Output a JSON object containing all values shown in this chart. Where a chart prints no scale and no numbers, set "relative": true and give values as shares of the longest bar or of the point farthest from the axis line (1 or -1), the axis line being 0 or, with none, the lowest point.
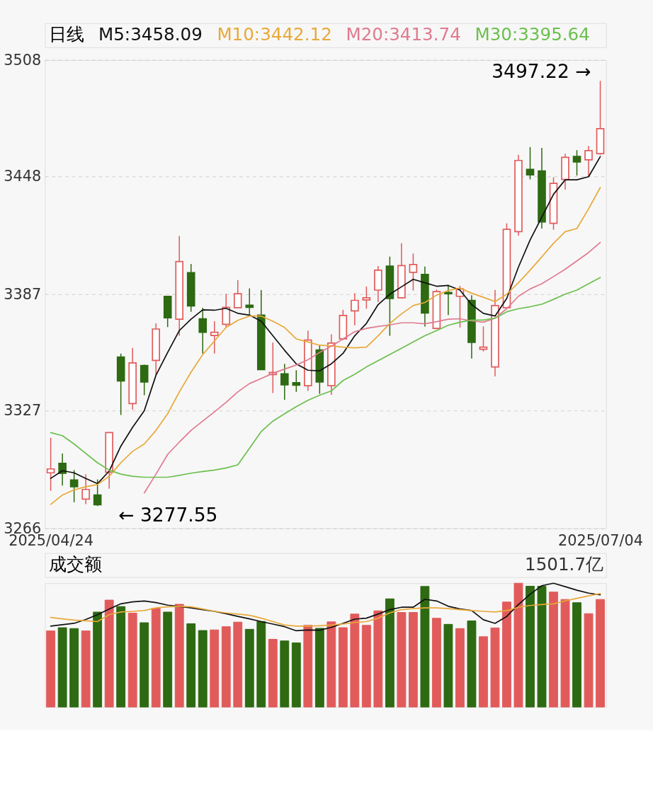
{
  "chart_data": [
    {
      "type": "candlestick",
      "title": "日线",
      "legend": "top left",
      "grid": "y",
      "categories": [
        "2025/04/24",
        null,
        null,
        null,
        null,
        null,
        null,
        null,
        null,
        null,
        null,
        null,
        null,
        null,
        null,
        null,
        null,
        null,
        null,
        null,
        null,
        null,
        null,
        null,
        null,
        null,
        null,
        null,
        null,
        null,
        null,
        null,
        null,
        null,
        null,
        null,
        null,
        null,
        null,
        null,
        null,
        null,
        null,
        null,
        null,
        null,
        null,
        "2025/07/04"
      ],
      "ylim": [
        3266,
        3508
      ],
      "yticks": [
        3266,
        3327,
        3387,
        3448,
        3508
      ],
      "ohlc": [
        [
          3294.7,
          3312.8,
          3285.4,
          3296.7
        ],
        [
          3299.6,
          3304.7,
          3288.1,
          3294.5
        ],
        [
          3291.0,
          3296.1,
          3279.5,
          3287.5
        ],
        [
          3281.1,
          3294.0,
          3278.5,
          3286.1
        ],
        [
          3283.2,
          3291.3,
          3277.55,
          3278.2
        ],
        [
          3295.0,
          3315.6,
          3286.5,
          3315.5
        ],
        [
          3354.5,
          3356.3,
          3324.6,
          3342.2
        ],
        [
          3330.5,
          3359.2,
          3327.3,
          3351.5
        ],
        [
          3350.1,
          3350.6,
          3334.8,
          3341.6
        ],
        [
          3352.8,
          3371.9,
          3345.1,
          3369.0
        ],
        [
          3385.9,
          3385.9,
          3370.0,
          3374.8
        ],
        [
          3374.1,
          3417.1,
          3365.5,
          3403.9
        ],
        [
          3398.1,
          3402.6,
          3377.9,
          3380.9
        ],
        [
          3374.3,
          3380.0,
          3356.3,
          3367.3
        ],
        [
          3365.7,
          3373.0,
          3356.3,
          3367.3
        ],
        [
          3371.4,
          3387.2,
          3369.8,
          3380.2
        ],
        [
          3380.0,
          3394.2,
          3380.0,
          3387.2
        ],
        [
          3381.3,
          3390.0,
          3376.2,
          3380.2
        ],
        [
          3376.2,
          3389.1,
          3348.0,
          3348.0
        ],
        [
          3345.5,
          3362.0,
          3335.9,
          3346.6
        ],
        [
          3345.8,
          3351.0,
          3332.4,
          3340.2
        ],
        [
          3341.3,
          3347.7,
          3336.5,
          3340.0
        ],
        [
          3339.7,
          3368.2,
          3337.0,
          3363.3
        ],
        [
          3358.2,
          3360.7,
          3335.5,
          3341.6
        ],
        [
          3339.7,
          3366.3,
          3335.0,
          3361.7
        ],
        [
          3363.9,
          3378.9,
          3363.3,
          3376.0
        ],
        [
          3378.4,
          3387.5,
          3370.9,
          3383.8
        ],
        [
          3384.0,
          3391.0,
          3379.5,
          3385.1
        ],
        [
          3389.1,
          3401.5,
          3382.9,
          3399.4
        ],
        [
          3401.5,
          3406.4,
          3365.5,
          3384.8
        ],
        [
          3385.1,
          3413.3,
          3384.8,
          3401.8
        ],
        [
          3398.3,
          3408.0,
          3388.9,
          3402.3
        ],
        [
          3397.2,
          3401.3,
          3370.3,
          3377.3
        ],
        [
          3369.3,
          3389.4,
          3368.9,
          3388.3
        ],
        [
          3387.9,
          3391.8,
          3376.2,
          3387.2
        ],
        [
          3385.9,
          3391.3,
          3369.8,
          3389.7
        ],
        [
          3383.8,
          3386.5,
          3353.7,
          3362.1
        ],
        [
          3358.5,
          3370.3,
          3357.4,
          3359.6
        ],
        [
          3349.4,
          3389.2,
          3344.5,
          3381.1
        ],
        [
          3380.0,
          3423.6,
          3379.7,
          3420.5
        ],
        [
          3419.3,
          3459.0,
          3417.3,
          3456.1
        ],
        [
          3451.5,
          3463.0,
          3446.3,
          3448.6
        ],
        [
          3450.7,
          3462.6,
          3420.9,
          3424.3
        ],
        [
          3423.6,
          3447.4,
          3420.3,
          3444.3
        ],
        [
          3446.3,
          3459.6,
          3441.0,
          3457.7
        ],
        [
          3458.2,
          3461.4,
          3448.3,
          3455.3
        ],
        [
          3456.4,
          3463.6,
          3447.7,
          3461.2
        ],
        [
          3459.6,
          3497.22,
          3459.0,
          3472.5
        ]
      ],
      "colors": [
        "#e15b5b",
        "#2d6a12",
        "#2d6a12",
        "#e15b5b",
        "#2d6a12",
        "#e15b5b",
        "#2d6a12",
        "#e15b5b",
        "#2d6a12",
        "#e15b5b",
        "#2d6a12",
        "#e15b5b",
        "#2d6a12",
        "#2d6a12",
        "#e15b5b",
        "#e15b5b",
        "#e15b5b",
        "#2d6a12",
        "#2d6a12",
        "#e15b5b",
        "#2d6a12",
        "#2d6a12",
        "#e15b5b",
        "#2d6a12",
        "#e15b5b",
        "#e15b5b",
        "#e15b5b",
        "#e15b5b",
        "#e15b5b",
        "#2d6a12",
        "#e15b5b",
        "#e15b5b",
        "#2d6a12",
        "#e15b5b",
        "#2d6a12",
        "#e15b5b",
        "#2d6a12",
        "#e15b5b",
        "#e15b5b",
        "#e15b5b",
        "#e15b5b",
        "#2d6a12",
        "#2d6a12",
        "#e15b5b",
        "#e15b5b",
        "#2d6a12",
        "#e15b5b",
        "#e15b5b"
      ],
      "series": [
        {
          "type": "line",
          "name": "M5:3458.09",
          "color": "#111111",
          "values": [
            3291.8,
            3295.8,
            3294.7,
            3291.8,
            3289.1,
            3295.6,
            3308.5,
            3318.2,
            3326.8,
            3345.1,
            3356.9,
            3368.2,
            3374.1,
            3378.9,
            3378.7,
            3379.7,
            3377.1,
            3376.2,
            3373.0,
            3365.5,
            3358.0,
            3351.0,
            3347.7,
            3347.4,
            3351.0,
            3356.4,
            3365.5,
            3371.9,
            3381.6,
            3387.0,
            3390.8,
            3394.7,
            3392.9,
            3391.1,
            3391.5,
            3389.1,
            3381.6,
            3377.1,
            3375.7,
            3384.8,
            3401.0,
            3415.0,
            3426.8,
            3438.6,
            3446.1,
            3446.1,
            3447.7,
            3458.09
          ]
        },
        {
          "type": "line",
          "name": "M10:3442.12",
          "color": "#e8a93a",
          "values": [
            3278.4,
            3283.2,
            3285.9,
            3287.5,
            3288.6,
            3292.9,
            3299.9,
            3305.8,
            3309.6,
            3316.6,
            3325.2,
            3336.5,
            3346.7,
            3355.8,
            3362.8,
            3369.8,
            3373.5,
            3375.7,
            3375.7,
            3373.0,
            3369.8,
            3363.9,
            3362.3,
            3360.6,
            3360.3,
            3359.6,
            3359.3,
            3359.6,
            3365.5,
            3371.9,
            3376.8,
            3381.1,
            3382.7,
            3386.5,
            3388.9,
            3390.2,
            3387.5,
            3385.4,
            3383.2,
            3387.0,
            3392.9,
            3399.4,
            3406.3,
            3413.3,
            3419.3,
            3420.9,
            3431.1,
            3442.12
          ]
        },
        {
          "type": "line",
          "name": "M20:3413.74",
          "color": "#e07b8f",
          "values": [
            null,
            null,
            null,
            null,
            null,
            null,
            null,
            null,
            3284.3,
            3294.0,
            3304.2,
            3310.6,
            3316.6,
            3321.4,
            3326.2,
            3331.1,
            3336.5,
            3340.8,
            3343.4,
            3346.1,
            3348.3,
            3350.4,
            3353.1,
            3356.9,
            3360.1,
            3363.9,
            3367.6,
            3369.3,
            3370.3,
            3371.1,
            3372.2,
            3372.2,
            3371.7,
            3372.8,
            3374.1,
            3374.3,
            3373.2,
            3372.5,
            3374.6,
            3379.5,
            3385.9,
            3389.7,
            3392.4,
            3396.1,
            3399.9,
            3404.2,
            3408.5,
            3413.74
          ]
        },
        {
          "type": "line",
          "name": "M30:3395.64",
          "color": "#6cbf4f",
          "values": [
            3315.5,
            3313.9,
            3309.6,
            3304.7,
            3299.9,
            3296.1,
            3294.0,
            3292.9,
            3292.4,
            3292.4,
            3292.4,
            3293.4,
            3294.5,
            3295.4,
            3296.1,
            3297.2,
            3298.8,
            3307.4,
            3316.0,
            3321.4,
            3325.2,
            3328.9,
            3332.2,
            3334.8,
            3337.0,
            3342.4,
            3345.6,
            3349.4,
            3352.6,
            3355.8,
            3359.0,
            3362.3,
            3365.5,
            3368.2,
            3370.9,
            3372.5,
            3373.6,
            3373.6,
            3374.6,
            3377.9,
            3379.5,
            3380.5,
            3381.8,
            3384.3,
            3387.0,
            3389.1,
            3392.4,
            3395.64
          ]
        }
      ],
      "annotations": [
        {
          "text": "3497.22 →",
          "x": "2025/07/04",
          "y": 3497.22
        },
        "← 3277.55"
      ]
    },
    {
      "type": "bar",
      "relative": true,
      "title": "成交额",
      "annotations": [
        "1501.7亿"
      ],
      "categories": [
        null,
        null,
        null,
        null,
        null,
        null,
        null,
        null,
        null,
        null,
        null,
        null,
        null,
        null,
        null,
        null,
        null,
        null,
        null,
        null,
        null,
        null,
        null,
        null,
        null,
        null,
        null,
        null,
        null,
        null,
        null,
        null,
        null,
        null,
        null,
        null,
        null,
        null,
        null,
        null,
        null,
        null,
        null,
        null,
        null,
        null,
        null,
        null
      ],
      "series": [
        {
          "type": "bar",
          "colors": [
            "#e15b5b",
            "#2d6a12",
            "#2d6a12",
            "#e15b5b",
            "#2d6a12",
            "#e15b5b",
            "#2d6a12",
            "#e15b5b",
            "#2d6a12",
            "#e15b5b",
            "#2d6a12",
            "#e15b5b",
            "#2d6a12",
            "#2d6a12",
            "#e15b5b",
            "#e15b5b",
            "#e15b5b",
            "#2d6a12",
            "#2d6a12",
            "#e15b5b",
            "#2d6a12",
            "#2d6a12",
            "#e15b5b",
            "#2d6a12",
            "#e15b5b",
            "#e15b5b",
            "#e15b5b",
            "#e15b5b",
            "#e15b5b",
            "#2d6a12",
            "#e15b5b",
            "#e15b5b",
            "#2d6a12",
            "#e15b5b",
            "#2d6a12",
            "#e15b5b",
            "#2d6a12",
            "#e15b5b",
            "#e15b5b",
            "#e15b5b",
            "#e15b5b",
            "#2d6a12",
            "#2d6a12",
            "#e15b5b",
            "#e15b5b",
            "#2d6a12",
            "#e15b5b",
            "#e15b5b"
          ],
          "values": [
            0.615,
            0.641,
            0.634,
            0.615,
            0.767,
            0.864,
            0.812,
            0.759,
            0.681,
            0.798,
            0.767,
            0.83,
            0.673,
            0.618,
            0.623,
            0.649,
            0.686,
            0.628,
            0.691,
            0.547,
            0.534,
            0.518,
            0.66,
            0.636,
            0.688,
            0.641,
            0.751,
            0.66,
            0.777,
            0.874,
            0.764,
            0.764,
            0.974,
            0.717,
            0.668,
            0.634,
            0.696,
            0.568,
            0.639,
            0.848,
            1,
            0.976,
            0.976,
            0.929,
            0.869,
            0.843,
            0.754,
            0.869
          ]
        }
      ]
    },
    {
      "type": "line",
      "relative": true,
      "categories": [
        null,
        null,
        null,
        null,
        null,
        null,
        null,
        null,
        null,
        null,
        null,
        null,
        null,
        null,
        null,
        null,
        null,
        null,
        null,
        null,
        null,
        null,
        null,
        null,
        null,
        null,
        null,
        null,
        null,
        null,
        null,
        null,
        null,
        null,
        null,
        null,
        null,
        null,
        null,
        null,
        null,
        null,
        null,
        null,
        null,
        null,
        null,
        null
      ],
      "series": [
        {
          "type": "line",
          "color": "#111111",
          "values": [
            0.654,
            0.665,
            0.676,
            0.707,
            0.746,
            0.791,
            0.834,
            0.849,
            0.857,
            0.844,
            0.823,
            0.812,
            0.801,
            0.786,
            0.773,
            0.754,
            0.732,
            0.712,
            0.69,
            0.67,
            0.649,
            0.616,
            0.622,
            0.621,
            0.643,
            0.676,
            0.71,
            0.718,
            0.751,
            0.787,
            0.806,
            0.806,
            0.87,
            0.857,
            0.814,
            0.792,
            0.779,
            0.705,
            0.676,
            0.732,
            0.828,
            0.911,
            0.98,
            1,
            0.972,
            0.944,
            0.92,
            0.906
          ]
        },
        {
          "type": "line",
          "color": "#e8a93a",
          "values": [
            0.724,
            0.712,
            0.702,
            0.696,
            0.69,
            0.746,
            0.768,
            0.773,
            0.779,
            0.801,
            0.809,
            0.814,
            0.809,
            0.792,
            0.773,
            0.76,
            0.751,
            0.741,
            0.718,
            0.69,
            0.662,
            0.654,
            0.654,
            0.657,
            0.662,
            0.671,
            0.683,
            0.69,
            0.718,
            0.76,
            0.787,
            0.795,
            0.801,
            0.801,
            0.795,
            0.787,
            0.779,
            0.773,
            0.768,
            0.779,
            0.806,
            0.82,
            0.828,
            0.834,
            0.857,
            0.878,
            0.898,
            0.917
          ]
        }
      ]
    }
  ]
}
